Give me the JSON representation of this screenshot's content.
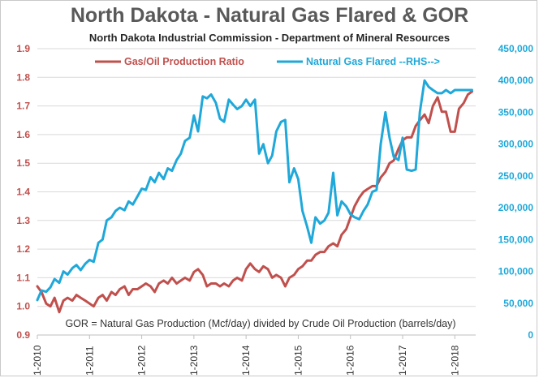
{
  "chart_data": {
    "type": "line",
    "title": "North Dakota - Natural Gas Flared & GOR",
    "subtitle": "North Dakota Industrial Commission - Department of Mineral Resources",
    "annotation": "GOR = Natural Gas Production (Mcf/day) divided by Crude Oil Production (barrels/day)",
    "x_ticks": [
      "1-2010",
      "1-2011",
      "1-2012",
      "1-2013",
      "1-2014",
      "1-2015",
      "1-2016",
      "1-2017",
      "1-2018"
    ],
    "x_start": 2010.0,
    "x_end": 2018.4,
    "left_axis": {
      "ylim": [
        0.9,
        1.9
      ],
      "ticks": [
        "0.9",
        "1.0",
        "1.1",
        "1.2",
        "1.3",
        "1.4",
        "1.5",
        "1.6",
        "1.7",
        "1.8",
        "1.9"
      ],
      "color": "#c0504d"
    },
    "right_axis": {
      "ylim": [
        0,
        450000
      ],
      "ticks": [
        "0",
        "50,000",
        "100,000",
        "150,000",
        "200,000",
        "250,000",
        "300,000",
        "350,000",
        "400,000",
        "450,000"
      ],
      "color": "#1fa8d9"
    },
    "series": [
      {
        "name": "Gas/Oil Production Ratio",
        "axis": "left",
        "color": "#c0504d",
        "x": [
          2010.0,
          2010.08,
          2010.17,
          2010.25,
          2010.33,
          2010.42,
          2010.5,
          2010.58,
          2010.67,
          2010.75,
          2010.83,
          2010.92,
          2011.0,
          2011.08,
          2011.17,
          2011.25,
          2011.33,
          2011.42,
          2011.5,
          2011.58,
          2011.67,
          2011.75,
          2011.83,
          2011.92,
          2012.0,
          2012.08,
          2012.17,
          2012.25,
          2012.33,
          2012.42,
          2012.5,
          2012.58,
          2012.67,
          2012.75,
          2012.83,
          2012.92,
          2013.0,
          2013.08,
          2013.17,
          2013.25,
          2013.33,
          2013.42,
          2013.5,
          2013.58,
          2013.67,
          2013.75,
          2013.83,
          2013.92,
          2014.0,
          2014.08,
          2014.17,
          2014.25,
          2014.33,
          2014.42,
          2014.5,
          2014.58,
          2014.67,
          2014.75,
          2014.83,
          2014.92,
          2015.0,
          2015.08,
          2015.17,
          2015.25,
          2015.33,
          2015.42,
          2015.5,
          2015.58,
          2015.67,
          2015.75,
          2015.83,
          2015.92,
          2016.0,
          2016.08,
          2016.17,
          2016.25,
          2016.33,
          2016.42,
          2016.5,
          2016.58,
          2016.67,
          2016.75,
          2016.83,
          2016.92,
          2017.0,
          2017.08,
          2017.17,
          2017.25,
          2017.33,
          2017.42,
          2017.5,
          2017.58,
          2017.67,
          2017.75,
          2017.83,
          2017.92,
          2018.0,
          2018.08,
          2018.17,
          2018.25,
          2018.33
        ],
        "values": [
          1.07,
          1.05,
          1.01,
          1.0,
          1.03,
          0.98,
          1.02,
          1.03,
          1.02,
          1.04,
          1.03,
          1.02,
          1.01,
          1.0,
          1.03,
          1.04,
          1.02,
          1.05,
          1.04,
          1.06,
          1.07,
          1.04,
          1.06,
          1.06,
          1.07,
          1.08,
          1.07,
          1.05,
          1.08,
          1.09,
          1.08,
          1.1,
          1.08,
          1.09,
          1.1,
          1.09,
          1.12,
          1.13,
          1.11,
          1.07,
          1.08,
          1.08,
          1.07,
          1.08,
          1.07,
          1.09,
          1.1,
          1.09,
          1.13,
          1.15,
          1.13,
          1.12,
          1.14,
          1.13,
          1.1,
          1.11,
          1.1,
          1.07,
          1.1,
          1.11,
          1.13,
          1.14,
          1.16,
          1.16,
          1.18,
          1.19,
          1.19,
          1.21,
          1.22,
          1.21,
          1.25,
          1.27,
          1.31,
          1.35,
          1.38,
          1.4,
          1.41,
          1.42,
          1.42,
          1.45,
          1.47,
          1.5,
          1.51,
          1.55,
          1.58,
          1.59,
          1.59,
          1.63,
          1.65,
          1.67,
          1.64,
          1.7,
          1.73,
          1.68,
          1.68,
          1.61,
          1.61,
          1.69,
          1.71,
          1.74,
          1.75
        ]
      },
      {
        "name": "Natural Gas Flared --RHS-->",
        "axis": "right",
        "color": "#1fa8d9",
        "x": [
          2010.0,
          2010.08,
          2010.17,
          2010.25,
          2010.33,
          2010.42,
          2010.5,
          2010.58,
          2010.67,
          2010.75,
          2010.83,
          2010.92,
          2011.0,
          2011.08,
          2011.17,
          2011.25,
          2011.33,
          2011.42,
          2011.5,
          2011.58,
          2011.67,
          2011.75,
          2011.83,
          2011.92,
          2012.0,
          2012.08,
          2012.17,
          2012.25,
          2012.33,
          2012.42,
          2012.5,
          2012.58,
          2012.67,
          2012.75,
          2012.83,
          2012.92,
          2013.0,
          2013.08,
          2013.17,
          2013.25,
          2013.33,
          2013.42,
          2013.5,
          2013.58,
          2013.67,
          2013.75,
          2013.83,
          2013.92,
          2014.0,
          2014.08,
          2014.17,
          2014.25,
          2014.33,
          2014.42,
          2014.5,
          2014.58,
          2014.67,
          2014.75,
          2014.83,
          2014.92,
          2015.0,
          2015.08,
          2015.17,
          2015.25,
          2015.33,
          2015.42,
          2015.5,
          2015.58,
          2015.67,
          2015.75,
          2015.83,
          2015.92,
          2016.0,
          2016.08,
          2016.17,
          2016.25,
          2016.33,
          2016.42,
          2016.5,
          2016.58,
          2016.67,
          2016.75,
          2016.83,
          2016.92,
          2017.0,
          2017.08,
          2017.17,
          2017.25,
          2017.33,
          2017.42,
          2017.5,
          2017.58,
          2017.67,
          2017.75,
          2017.83,
          2017.92,
          2018.0,
          2018.08,
          2018.17,
          2018.25,
          2018.33
        ],
        "values": [
          55000,
          70000,
          68000,
          75000,
          88000,
          82000,
          100000,
          95000,
          105000,
          110000,
          102000,
          112000,
          118000,
          115000,
          145000,
          150000,
          180000,
          185000,
          195000,
          200000,
          196000,
          210000,
          205000,
          218000,
          230000,
          228000,
          248000,
          240000,
          255000,
          245000,
          262000,
          258000,
          275000,
          285000,
          305000,
          310000,
          345000,
          320000,
          375000,
          372000,
          378000,
          365000,
          340000,
          335000,
          370000,
          362000,
          355000,
          360000,
          370000,
          360000,
          370000,
          285000,
          300000,
          270000,
          282000,
          320000,
          335000,
          338000,
          240000,
          262000,
          245000,
          195000,
          170000,
          145000,
          185000,
          175000,
          180000,
          192000,
          255000,
          188000,
          210000,
          202000,
          190000,
          185000,
          182000,
          195000,
          205000,
          225000,
          228000,
          300000,
          350000,
          310000,
          280000,
          275000,
          310000,
          260000,
          258000,
          260000,
          350000,
          400000,
          390000,
          385000,
          380000,
          380000,
          385000,
          380000,
          385000,
          385000,
          385000,
          385000,
          385000
        ]
      }
    ]
  }
}
